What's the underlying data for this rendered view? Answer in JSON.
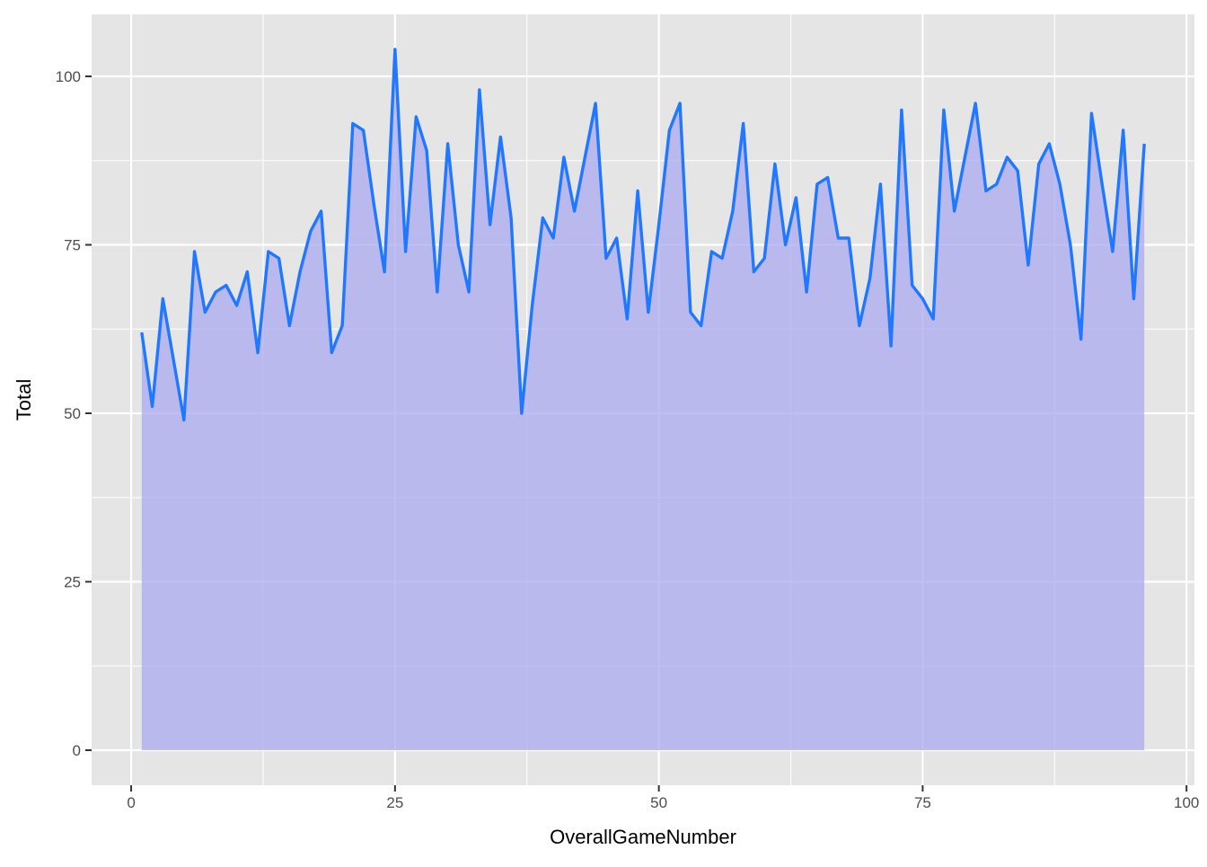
{
  "chart_data": {
    "type": "area",
    "title": "",
    "xlabel": "OverallGameNumber",
    "ylabel": "Total",
    "xlim": [
      -3.75,
      100.75
    ],
    "ylim": [
      -5.2,
      109.2
    ],
    "x_ticks": [
      0,
      25,
      50,
      75,
      100
    ],
    "x_tick_labels": [
      "0",
      "25",
      "50",
      "75",
      "100"
    ],
    "x_minor_ticks": [
      12.5,
      37.5,
      62.5,
      87.5
    ],
    "y_ticks": [
      0,
      25,
      50,
      75,
      100
    ],
    "y_tick_labels": [
      "0",
      "25",
      "50",
      "75",
      "100"
    ],
    "y_minor_ticks": [
      12.5,
      37.5,
      62.5,
      87.5
    ],
    "grid": true,
    "legend": "none",
    "colors": {
      "panel_background": "#e5e5e5",
      "grid": "#ffffff",
      "line": "#1f78ff",
      "fill": "#aaaaf0"
    },
    "series": [
      {
        "x": [
          1,
          2,
          3,
          4,
          5,
          6,
          7,
          8,
          9,
          10,
          11,
          12,
          13,
          14,
          15,
          16,
          17,
          18,
          19,
          20,
          21,
          22,
          23,
          24,
          25,
          26,
          27,
          28,
          29,
          30,
          31,
          32,
          33,
          34,
          35,
          36,
          37,
          38,
          39,
          40,
          41,
          42,
          43,
          44,
          45,
          46,
          47,
          48,
          49,
          50,
          51,
          52,
          53,
          54,
          55,
          56,
          57,
          58,
          59,
          60,
          61,
          62,
          63,
          64,
          65,
          66,
          67,
          68,
          69,
          70,
          71,
          72,
          73,
          74,
          75,
          76,
          77,
          78,
          79,
          80,
          81,
          82,
          83,
          84,
          85,
          86,
          87,
          88,
          89,
          90,
          91,
          92,
          93,
          94,
          95,
          96
        ],
        "values": [
          62,
          51,
          67,
          58,
          49,
          74,
          65,
          68,
          69,
          66,
          71,
          59,
          74,
          73,
          63,
          71,
          77,
          80,
          59,
          63,
          93,
          92,
          81,
          71,
          104,
          74,
          94,
          89,
          68,
          90,
          75,
          68,
          98,
          78,
          91,
          79,
          50,
          66,
          79,
          76,
          88,
          80,
          88,
          96,
          73,
          76,
          64,
          83,
          65,
          78,
          92,
          96,
          65,
          63,
          74,
          73,
          80,
          93,
          71,
          73,
          87,
          75,
          82,
          68,
          84,
          85,
          76,
          76,
          63,
          70,
          84,
          60,
          95,
          69,
          67,
          64,
          95,
          80,
          88,
          96,
          83,
          84,
          88,
          86,
          72,
          87,
          90,
          84,
          75,
          61,
          94.5,
          84,
          74,
          92,
          67,
          90
        ]
      }
    ]
  }
}
